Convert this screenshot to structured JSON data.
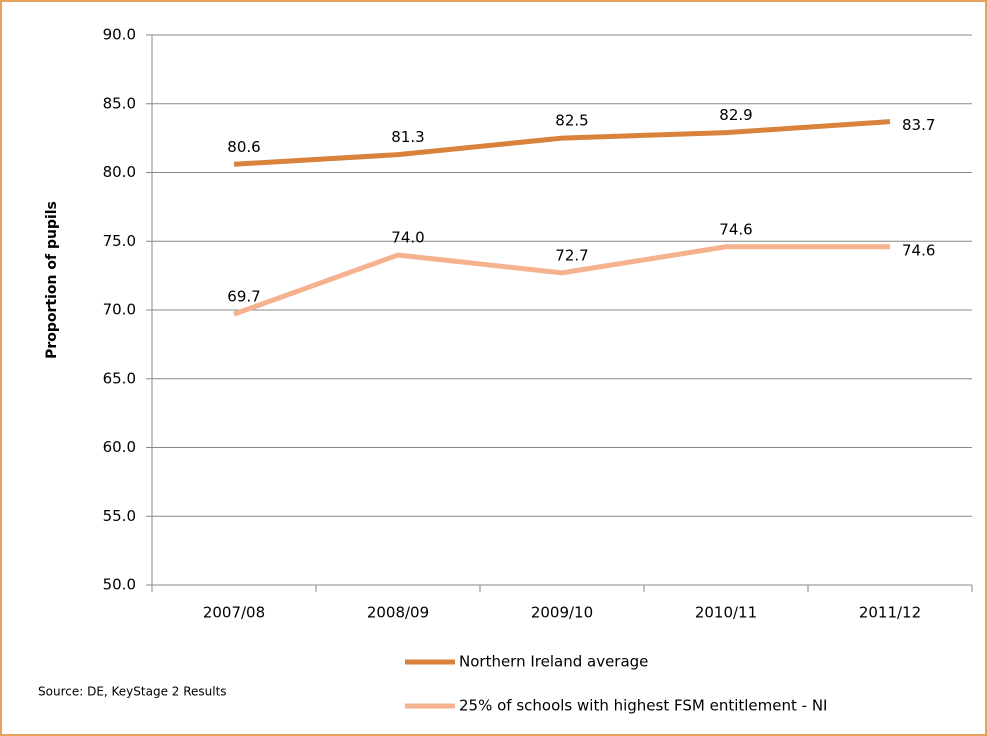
{
  "chart_data": {
    "type": "line",
    "y_label": "Proportion of pupils",
    "source": "Source: DE, KeyStage 2 Results",
    "categories": [
      "2007/08",
      "2008/09",
      "2009/10",
      "2010/11",
      "2011/12"
    ],
    "series": [
      {
        "name": "Northern Ireland average",
        "color": "#d9823b",
        "values": [
          80.6,
          81.3,
          82.5,
          82.9,
          83.7
        ],
        "value_labels": [
          "80.6",
          "81.3",
          "82.5",
          "82.9",
          "83.7"
        ]
      },
      {
        "name": "25% of schools with highest FSM entitlement - NI",
        "color": "#f6b28e",
        "values": [
          69.7,
          74.0,
          72.7,
          74.6,
          74.6
        ],
        "value_labels": [
          "69.7",
          "74.0",
          "72.7",
          "74.6",
          "74.6"
        ]
      }
    ],
    "ylim": [
      50,
      90
    ],
    "yticks": [
      {
        "value": 50,
        "label": "50.0"
      },
      {
        "value": 55,
        "label": "55.0"
      },
      {
        "value": 60,
        "label": "60.0"
      },
      {
        "value": 65,
        "label": "65.0"
      },
      {
        "value": 70,
        "label": "70.0"
      },
      {
        "value": 75,
        "label": "75.0"
      },
      {
        "value": 80,
        "label": "80.0"
      },
      {
        "value": 85,
        "label": "85.0"
      },
      {
        "value": 90,
        "label": "90.0"
      }
    ],
    "grid": true
  }
}
